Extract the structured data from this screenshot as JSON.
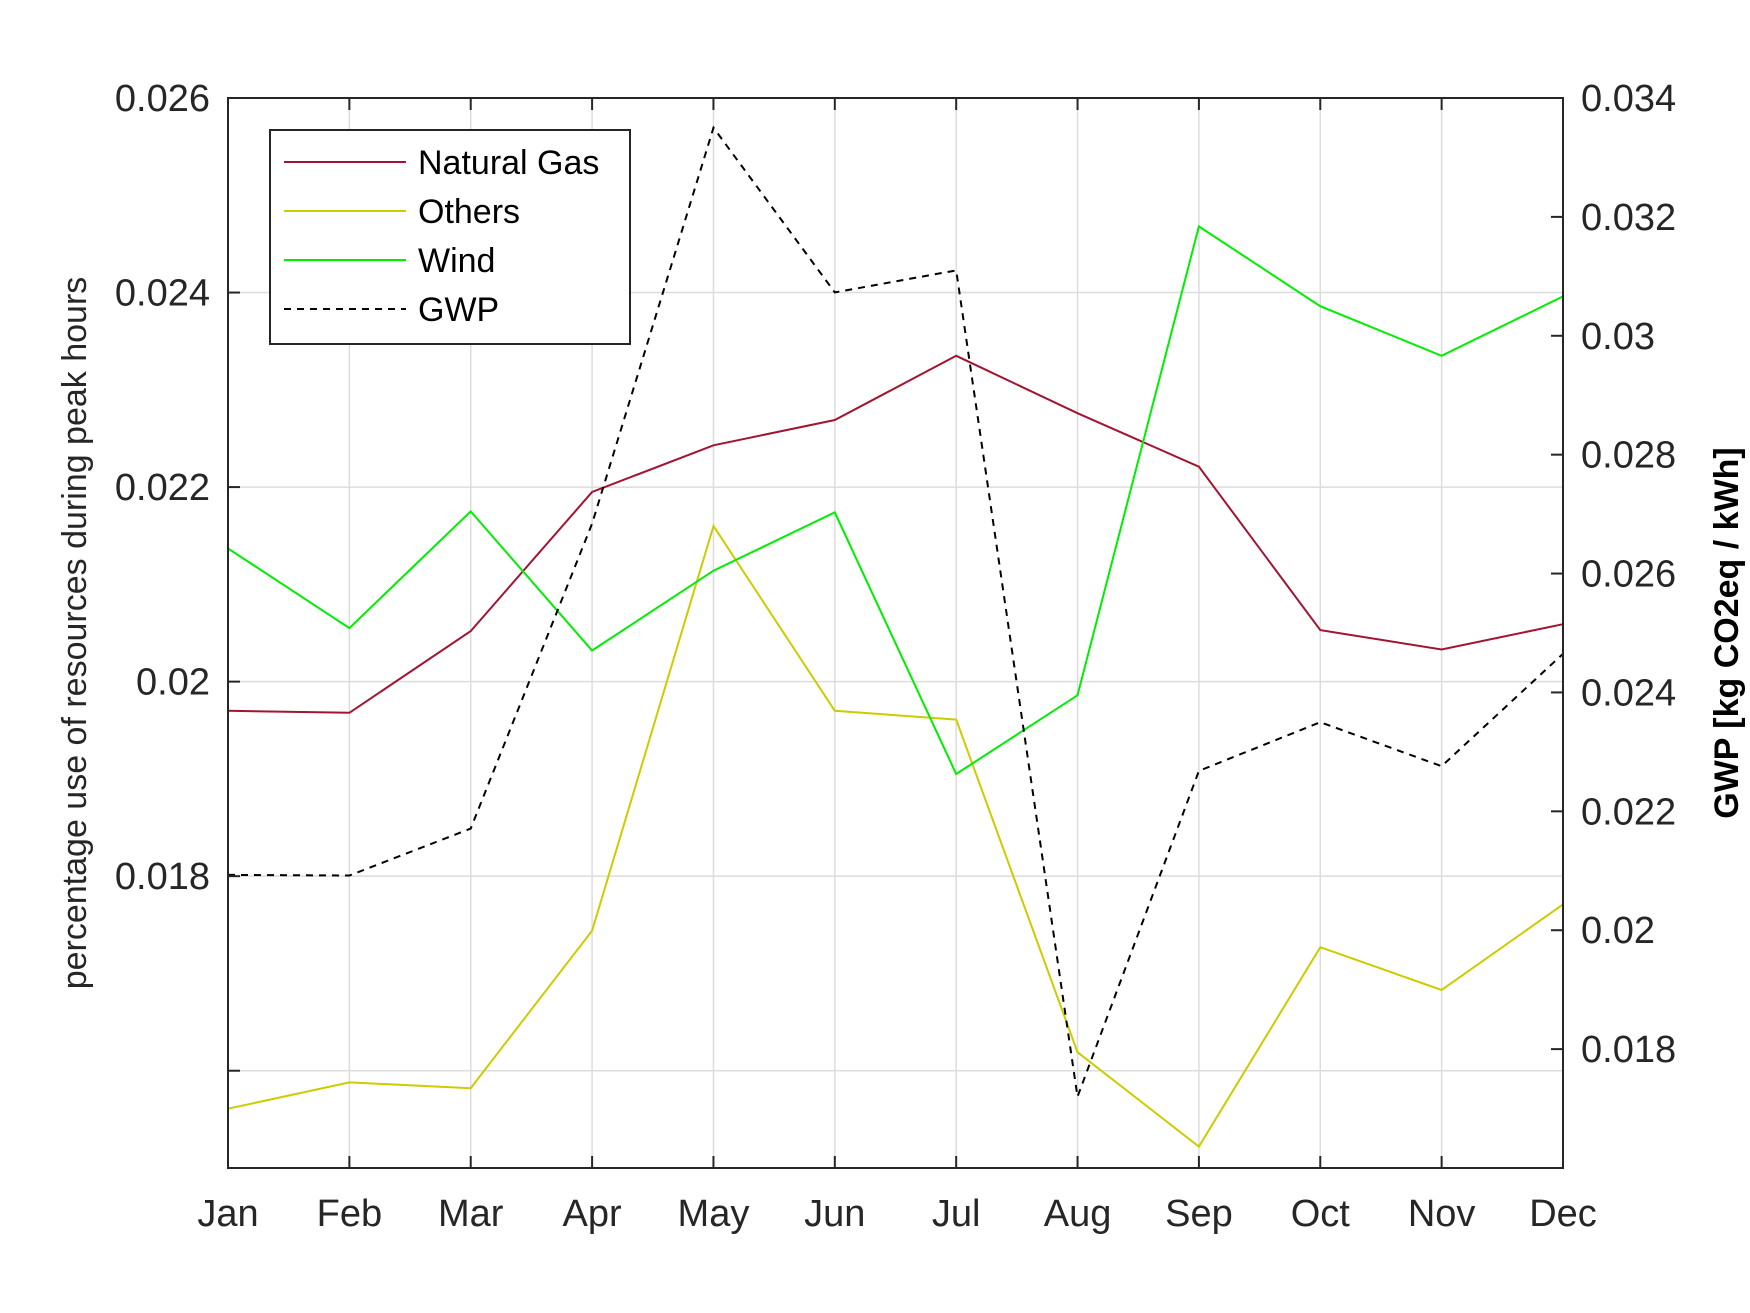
{
  "chart_data": {
    "type": "line",
    "title": "",
    "categories": [
      "Jan",
      "Feb",
      "Mar",
      "Apr",
      "May",
      "Jun",
      "Jul",
      "Aug",
      "Sep",
      "Oct",
      "Nov",
      "Dec"
    ],
    "xlabel": "",
    "ylabel_left": "percentage use of resources during peak hours",
    "ylabel_right": "GWP [kg CO2eq / kWh]",
    "ylim_left": [
      0.015,
      0.026
    ],
    "yticks_left": [
      0.016,
      0.018,
      0.02,
      0.022,
      0.024,
      0.026
    ],
    "yticklabels_left": [
      "",
      "0.018",
      "0.02",
      "0.022",
      "0.024",
      "0.026"
    ],
    "ylim_right": [
      0.016,
      0.034
    ],
    "yticks_right": [
      0.018,
      0.02,
      0.022,
      0.024,
      0.026,
      0.028,
      0.03,
      0.032,
      0.034
    ],
    "yticklabels_right": [
      "0.018",
      "0.02",
      "0.022",
      "0.024",
      "0.026",
      "0.028",
      "0.03",
      "0.032",
      "0.034"
    ],
    "grid": true,
    "legend_position": "top-left",
    "series": [
      {
        "name": "Natural Gas",
        "axis": "left",
        "color": "#a2142f",
        "dash": false,
        "values": [
          0.0197,
          0.01968,
          0.02052,
          0.02195,
          0.02243,
          0.02269,
          0.02335,
          0.02276,
          0.02221,
          0.02053,
          0.02033,
          0.02059
        ]
      },
      {
        "name": "Others",
        "axis": "left",
        "color": "#cccc00",
        "dash": false,
        "values": [
          0.01561,
          0.01588,
          0.01582,
          0.01744,
          0.0216,
          0.0197,
          0.01961,
          0.01619,
          0.01522,
          0.01727,
          0.01683,
          0.01771
        ]
      },
      {
        "name": "Wind",
        "axis": "left",
        "color": "#00ee00",
        "dash": false,
        "values": [
          0.02137,
          0.02055,
          0.02175,
          0.02032,
          0.02114,
          0.02174,
          0.01905,
          0.01986,
          0.02468,
          0.02386,
          0.02335,
          0.02396
        ]
      },
      {
        "name": "GWP",
        "axis": "right",
        "color": "#000000",
        "dash": true,
        "values": [
          0.02093,
          0.02092,
          0.02171,
          0.02684,
          0.0335,
          0.03073,
          0.0311,
          0.0172,
          0.02268,
          0.0235,
          0.02276,
          0.02465
        ]
      }
    ]
  }
}
